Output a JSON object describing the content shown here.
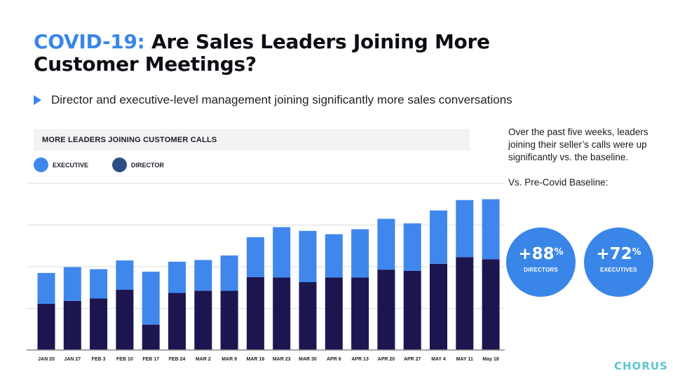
{
  "title": {
    "accent": "COVID-19:",
    "rest": " Are Sales Leaders Joining More Customer Meetings?"
  },
  "bullet": "Director and executive-level management joining significantly more sales conversations",
  "chart_panel": {
    "header": "MORE LEADERS JOINING CUSTOMER CALLS",
    "legend": {
      "executive": "EXECUTIVE",
      "director": "DIRECTOR"
    }
  },
  "colors": {
    "accent": "#3a86e8",
    "executive": "#3f87ed",
    "director": "#1c1650",
    "logo": "#5cc6d0"
  },
  "chart_data": {
    "type": "bar",
    "stacked": true,
    "categories": [
      "JAN 20",
      "JAN 27",
      "FEB 3",
      "FEB 10",
      "FEB 17",
      "FEB 24",
      "MAR 2",
      "MAR 9",
      "MAR 16",
      "MAR 23",
      "MAR 30",
      "APR 6",
      "APR 13",
      "APR 20",
      "APR 27",
      "MAY 4",
      "MAY 11",
      "May 18"
    ],
    "series": [
      {
        "name": "DIRECTOR",
        "values": [
          1.11,
          1.18,
          1.24,
          1.45,
          0.61,
          1.37,
          1.42,
          1.42,
          1.75,
          1.74,
          1.63,
          1.74,
          1.74,
          1.93,
          1.9,
          2.07,
          2.23,
          2.18
        ]
      },
      {
        "name": "EXECUTIVE",
        "values": [
          0.74,
          0.81,
          0.7,
          0.7,
          1.27,
          0.75,
          0.74,
          0.85,
          0.96,
          1.21,
          1.23,
          1.04,
          1.16,
          1.22,
          1.14,
          1.28,
          1.37,
          1.44
        ]
      }
    ],
    "ylim": [
      0,
      4
    ],
    "grid": true,
    "legend_position": "top-left"
  },
  "side": {
    "paragraph1": "Over the past five weeks, leaders joining their seller’s calls were up significantly vs. the baseline.",
    "paragraph2": "Vs. Pre-Covid Baseline:"
  },
  "stats": [
    {
      "value": "+88",
      "unit": "%",
      "label": "DIRECTORS"
    },
    {
      "value": "+72",
      "unit": "%",
      "label": "EXECUTIVES"
    }
  ],
  "logo": "CHORUS"
}
